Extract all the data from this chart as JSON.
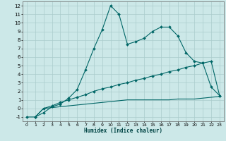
{
  "xlabel": "Humidex (Indice chaleur)",
  "bg_color": "#cce8e8",
  "grid_color": "#aacccc",
  "line_color": "#006666",
  "xlim": [
    -0.5,
    23.5
  ],
  "ylim": [
    -1.5,
    12.5
  ],
  "xticks": [
    0,
    1,
    2,
    3,
    4,
    5,
    6,
    7,
    8,
    9,
    10,
    11,
    12,
    13,
    14,
    15,
    16,
    17,
    18,
    19,
    20,
    21,
    22,
    23
  ],
  "yticks": [
    -1,
    0,
    1,
    2,
    3,
    4,
    5,
    6,
    7,
    8,
    9,
    10,
    11,
    12
  ],
  "line1_x": [
    0,
    1,
    2,
    3,
    4,
    5,
    6,
    7,
    8,
    9,
    10,
    11,
    12,
    13,
    14,
    15,
    16,
    17,
    18,
    19,
    20,
    21,
    22,
    23
  ],
  "line1_y": [
    -1,
    -1,
    -0.5,
    0.2,
    0.5,
    1.2,
    2.2,
    4.5,
    7.0,
    9.2,
    12.0,
    11.0,
    7.5,
    7.8,
    8.2,
    9.0,
    9.5,
    9.5,
    8.5,
    6.5,
    5.5,
    5.3,
    2.5,
    1.5
  ],
  "line2_x": [
    1,
    2,
    3,
    4,
    5,
    6,
    7,
    8,
    9,
    10,
    11,
    12,
    13,
    14,
    15,
    16,
    17,
    18,
    19,
    20,
    21,
    22,
    23
  ],
  "line2_y": [
    -1,
    0.0,
    0.3,
    0.7,
    1.0,
    1.3,
    1.6,
    2.0,
    2.3,
    2.5,
    2.8,
    3.0,
    3.3,
    3.5,
    3.8,
    4.0,
    4.3,
    4.5,
    4.8,
    5.0,
    5.3,
    5.5,
    1.5
  ],
  "line3_x": [
    1,
    2,
    3,
    4,
    5,
    6,
    7,
    8,
    9,
    10,
    11,
    12,
    13,
    14,
    15,
    16,
    17,
    18,
    19,
    20,
    21,
    22,
    23
  ],
  "line3_y": [
    -1,
    0.0,
    0.1,
    0.2,
    0.3,
    0.4,
    0.5,
    0.6,
    0.7,
    0.8,
    0.9,
    1.0,
    1.0,
    1.0,
    1.0,
    1.0,
    1.0,
    1.1,
    1.1,
    1.1,
    1.2,
    1.3,
    1.4
  ]
}
